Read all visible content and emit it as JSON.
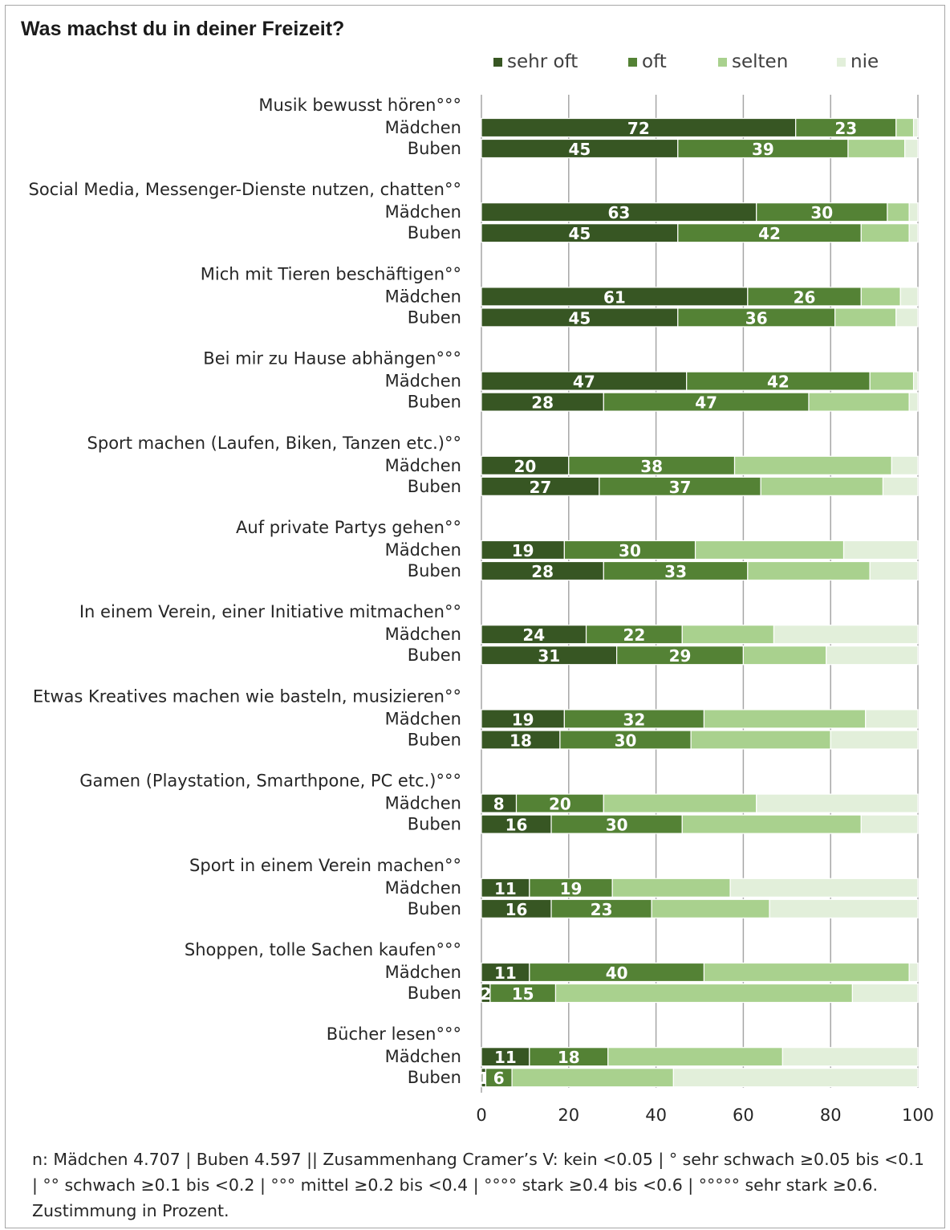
{
  "chart_data": {
    "type": "bar",
    "orientation": "horizontal",
    "stacked": true,
    "title": "Was machst du in deiner Freizeit?",
    "legend_position": "top",
    "colors": [
      "#375623",
      "#548235",
      "#a9d18e",
      "#e2efda"
    ],
    "series_names": [
      "sehr oft",
      "oft",
      "selten",
      "nie"
    ],
    "groups": [
      "Mädchen",
      "Buben"
    ],
    "xlim": [
      0,
      100
    ],
    "xticks": [
      0,
      20,
      40,
      60,
      80,
      100
    ],
    "grid": true,
    "categories": [
      {
        "label": "Musik bewusst hören°°°",
        "rows": [
          [
            72,
            23,
            4,
            1
          ],
          [
            45,
            39,
            13,
            3
          ]
        ]
      },
      {
        "label": "Social Media, Messenger-Dienste nutzen, chatten°°",
        "rows": [
          [
            63,
            30,
            5,
            2
          ],
          [
            45,
            42,
            11,
            2
          ]
        ]
      },
      {
        "label": "Mich mit Tieren beschäftigen°°",
        "rows": [
          [
            61,
            26,
            9,
            4
          ],
          [
            45,
            36,
            14,
            5
          ]
        ]
      },
      {
        "label": "Bei mir zu Hause abhängen°°°",
        "rows": [
          [
            47,
            42,
            10,
            1
          ],
          [
            28,
            47,
            23,
            2
          ]
        ]
      },
      {
        "label": "Sport machen (Laufen, Biken, Tanzen etc.)°°",
        "rows": [
          [
            20,
            38,
            36,
            6
          ],
          [
            27,
            37,
            28,
            8
          ]
        ]
      },
      {
        "label": "Auf private Partys gehen°°",
        "rows": [
          [
            19,
            30,
            34,
            17
          ],
          [
            28,
            33,
            28,
            11
          ]
        ]
      },
      {
        "label": "In einem Verein, einer Initiative mitmachen°°",
        "rows": [
          [
            24,
            22,
            21,
            33
          ],
          [
            31,
            29,
            19,
            21
          ]
        ]
      },
      {
        "label": "Etwas Kreatives machen wie basteln, musizieren°°",
        "rows": [
          [
            19,
            32,
            37,
            12
          ],
          [
            18,
            30,
            32,
            20
          ]
        ]
      },
      {
        "label": "Gamen (Playstation, Smarthpone, PC etc.)°°°",
        "rows": [
          [
            8,
            20,
            35,
            37
          ],
          [
            16,
            30,
            41,
            13
          ]
        ]
      },
      {
        "label": "Sport in einem Verein machen°°",
        "rows": [
          [
            11,
            19,
            27,
            43
          ],
          [
            16,
            23,
            27,
            34
          ]
        ]
      },
      {
        "label": "Shoppen, tolle Sachen kaufen°°°",
        "rows": [
          [
            11,
            40,
            47,
            2
          ],
          [
            2,
            15,
            68,
            15
          ]
        ]
      },
      {
        "label": "Bücher lesen°°°",
        "rows": [
          [
            11,
            18,
            40,
            31
          ],
          [
            1,
            6,
            37,
            56
          ]
        ]
      }
    ]
  },
  "footnote": "n: Mädchen 4.707 | Buben 4.597 || Zusammenhang Cramer’s V: kein <0.05 | ° sehr schwach ≥0.05 bis <0.1 | °° schwach ≥0.1 bis <0.2 | °°° mittel ≥0.2 bis <0.4 | °°°° stark ≥0.4 bis <0.6 | °°°°° sehr stark ≥0.6. Zustimmung in Prozent."
}
